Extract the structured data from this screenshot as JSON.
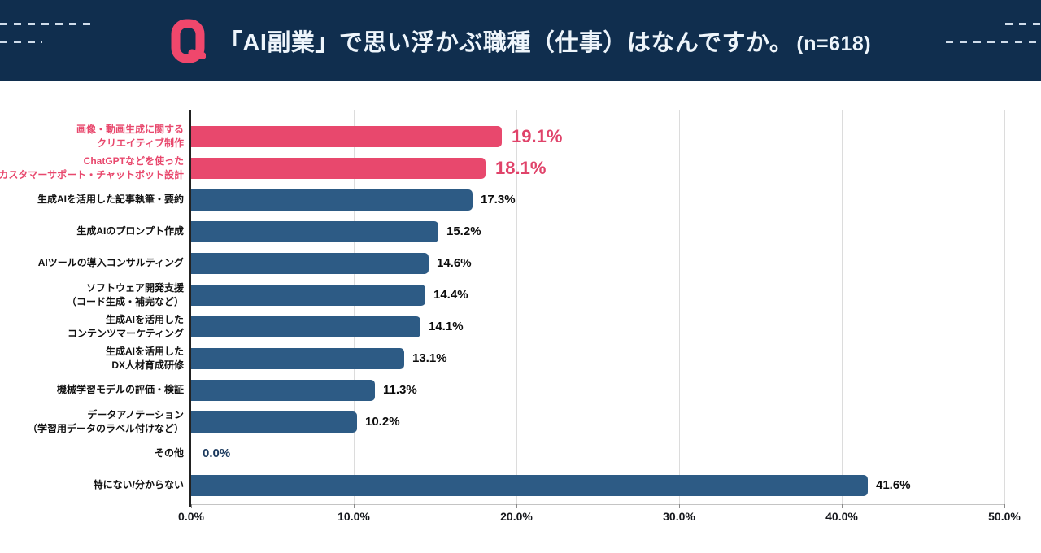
{
  "header": {
    "title": "「AI副業」で思い浮かぶ職種（仕事）はなんですか。",
    "sample": "(n=618)",
    "logo_icon": "q-mark-logo"
  },
  "colors": {
    "header_bg": "#102e4e",
    "bar_navy": "#2d5b85",
    "accent_pink": "#e8486d",
    "value_pink": "#e0436a",
    "zero_value_navy": "#1c3a5e",
    "gridline": "#dcdcdc",
    "axis_dark": "#222222",
    "axis_light": "#c4c4c4",
    "title_text": "#eef5fb",
    "dash_decoration": "#cfdcea"
  },
  "chart_data": {
    "type": "bar",
    "orientation": "horizontal",
    "title": "「AI副業」で思い浮かぶ職種（仕事）はなんですか。(n=618)",
    "xlabel": "",
    "ylabel": "",
    "xlim": [
      0,
      50
    ],
    "grid": true,
    "xticks": [
      0,
      10,
      20,
      30,
      40,
      50
    ],
    "xtick_labels": [
      "0.0%",
      "10.0%",
      "20.0%",
      "30.0%",
      "40.0%",
      "50.0%"
    ],
    "highlighted_indices": [
      0,
      1
    ],
    "categories": [
      "画像・動画生成に関する\nクリエイティブ制作",
      "ChatGPTなどを使った\nカスタマーサポート・チャットボット設計",
      "生成AIを活用した記事執筆・要約",
      "生成AIのプロンプト作成",
      "AIツールの導入コンサルティング",
      "ソフトウェア開発支援\n（コード生成・補完など）",
      "生成AIを活用した\nコンテンツマーケティング",
      "生成AIを活用した\nDX人材育成研修",
      "機械学習モデルの評価・検証",
      "データアノテーション\n（学習用データのラベル付けなど）",
      "その他",
      "特にない/分からない"
    ],
    "values": [
      19.1,
      18.1,
      17.3,
      15.2,
      14.6,
      14.4,
      14.1,
      13.1,
      11.3,
      10.2,
      0.0,
      41.6
    ],
    "value_labels": [
      "19.1%",
      "18.1%",
      "17.3%",
      "15.2%",
      "14.6%",
      "14.4%",
      "14.1%",
      "13.1%",
      "11.3%",
      "10.2%",
      "0.0%",
      "41.6%"
    ]
  }
}
